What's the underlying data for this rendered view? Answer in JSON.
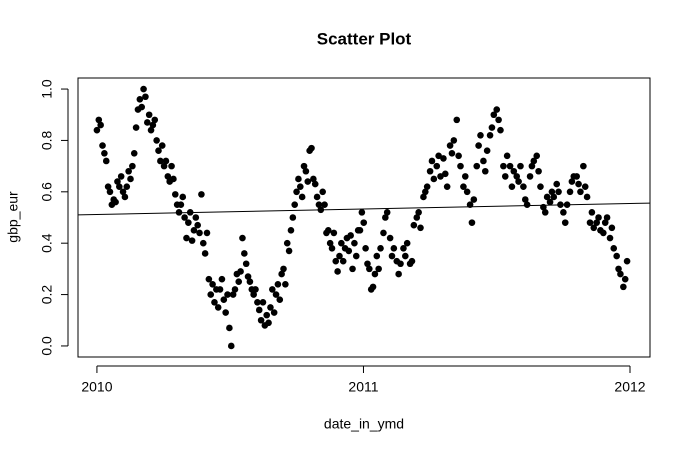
{
  "chart_data": {
    "type": "scatter",
    "title": "Scatter Plot",
    "x_label": "date_in_ymd",
    "y_label": "gbp_eur",
    "xlim": [
      2009.929,
      2012.075
    ],
    "ylim": [
      -0.043,
      1.043
    ],
    "xticks": [
      2010,
      2011,
      2012
    ],
    "yticks": [
      {
        "value": 0,
        "label": "0.0"
      },
      0.2,
      0.4,
      0.6,
      0.8,
      {
        "value": 1,
        "label": "1.0"
      }
    ],
    "color": "#000000",
    "fit_line": {
      "x": [
        2009.929,
        2012.075
      ],
      "y": [
        0.51,
        0.556
      ],
      "color": "#000000"
    },
    "x": [
      2010.0,
      2010.007,
      2010.014,
      2010.021,
      2010.028,
      2010.035,
      2010.042,
      2010.049,
      2010.056,
      2010.063,
      2010.07,
      2010.077,
      2010.084,
      2010.091,
      2010.098,
      2010.105,
      2010.112,
      2010.119,
      2010.126,
      2010.133,
      2010.14,
      2010.147,
      2010.154,
      2010.161,
      2010.168,
      2010.175,
      2010.182,
      2010.189,
      2010.196,
      2010.203,
      2010.21,
      2010.217,
      2010.224,
      2010.231,
      2010.238,
      2010.245,
      2010.252,
      2010.259,
      2010.266,
      2010.273,
      2010.28,
      2010.287,
      2010.294,
      2010.301,
      2010.308,
      2010.315,
      2010.322,
      2010.329,
      2010.336,
      2010.343,
      2010.35,
      2010.357,
      2010.364,
      2010.371,
      2010.378,
      2010.385,
      2010.392,
      2010.399,
      2010.406,
      2010.413,
      2010.42,
      2010.427,
      2010.434,
      2010.441,
      2010.448,
      2010.455,
      2010.462,
      2010.469,
      2010.476,
      2010.483,
      2010.49,
      2010.497,
      2010.504,
      2010.511,
      2010.518,
      2010.525,
      2010.532,
      2010.539,
      2010.546,
      2010.553,
      2010.56,
      2010.567,
      2010.574,
      2010.581,
      2010.588,
      2010.595,
      2010.602,
      2010.609,
      2010.616,
      2010.623,
      2010.63,
      2010.637,
      2010.644,
      2010.651,
      2010.658,
      2010.665,
      2010.672,
      2010.679,
      2010.686,
      2010.693,
      2010.7,
      2010.707,
      2010.714,
      2010.721,
      2010.728,
      2010.735,
      2010.742,
      2010.749,
      2010.756,
      2010.763,
      2010.77,
      2010.777,
      2010.784,
      2010.791,
      2010.798,
      2010.805,
      2010.812,
      2010.819,
      2010.826,
      2010.833,
      2010.84,
      2010.847,
      2010.854,
      2010.861,
      2010.868,
      2010.875,
      2010.882,
      2010.889,
      2010.896,
      2010.903,
      2010.91,
      2010.917,
      2010.924,
      2010.931,
      2010.938,
      2010.945,
      2010.952,
      2010.959,
      2010.966,
      2010.973,
      2010.98,
      2010.987,
      2010.994,
      2011.001,
      2011.008,
      2011.015,
      2011.022,
      2011.029,
      2011.036,
      2011.043,
      2011.05,
      2011.057,
      2011.064,
      2011.075,
      2011.082,
      2011.089,
      2011.1,
      2011.107,
      2011.114,
      2011.125,
      2011.132,
      2011.139,
      2011.15,
      2011.157,
      2011.164,
      2011.175,
      2011.182,
      2011.189,
      2011.2,
      2011.207,
      2011.214,
      2011.225,
      2011.232,
      2011.239,
      2011.25,
      2011.257,
      2011.264,
      2011.275,
      2011.282,
      2011.289,
      2011.3,
      2011.307,
      2011.314,
      2011.325,
      2011.332,
      2011.339,
      2011.35,
      2011.357,
      2011.364,
      2011.375,
      2011.382,
      2011.389,
      2011.4,
      2011.407,
      2011.414,
      2011.425,
      2011.432,
      2011.439,
      2011.45,
      2011.457,
      2011.464,
      2011.475,
      2011.482,
      2011.489,
      2011.5,
      2011.507,
      2011.514,
      2011.525,
      2011.532,
      2011.539,
      2011.55,
      2011.557,
      2011.564,
      2011.575,
      2011.582,
      2011.589,
      2011.6,
      2011.607,
      2011.614,
      2011.625,
      2011.632,
      2011.639,
      2011.65,
      2011.657,
      2011.664,
      2011.675,
      2011.682,
      2011.689,
      2011.7,
      2011.707,
      2011.714,
      2011.725,
      2011.732,
      2011.739,
      2011.75,
      2011.757,
      2011.764,
      2011.775,
      2011.782,
      2011.789,
      2011.8,
      2011.807,
      2011.814,
      2011.825,
      2011.832,
      2011.839,
      2011.85,
      2011.857,
      2011.864,
      2011.875,
      2011.882,
      2011.889,
      2011.9,
      2011.907,
      2011.914,
      2011.925,
      2011.932,
      2011.939,
      2011.95,
      2011.957,
      2011.964,
      2011.975,
      2011.982,
      2011.989
    ],
    "y": [
      0.84,
      0.88,
      0.86,
      0.78,
      0.75,
      0.72,
      0.62,
      0.6,
      0.55,
      0.57,
      0.56,
      0.64,
      0.62,
      0.66,
      0.6,
      0.58,
      0.62,
      0.68,
      0.65,
      0.7,
      0.75,
      0.85,
      0.92,
      0.96,
      0.93,
      1.0,
      0.97,
      0.87,
      0.9,
      0.84,
      0.86,
      0.88,
      0.8,
      0.76,
      0.72,
      0.78,
      0.7,
      0.72,
      0.66,
      0.64,
      0.7,
      0.65,
      0.59,
      0.55,
      0.52,
      0.55,
      0.58,
      0.5,
      0.42,
      0.48,
      0.52,
      0.41,
      0.45,
      0.5,
      0.47,
      0.44,
      0.59,
      0.4,
      0.36,
      0.44,
      0.26,
      0.2,
      0.24,
      0.17,
      0.22,
      0.15,
      0.22,
      0.26,
      0.18,
      0.13,
      0.2,
      0.07,
      0.0,
      0.2,
      0.22,
      0.28,
      0.25,
      0.29,
      0.42,
      0.36,
      0.32,
      0.27,
      0.25,
      0.22,
      0.2,
      0.22,
      0.17,
      0.14,
      0.1,
      0.17,
      0.08,
      0.12,
      0.09,
      0.15,
      0.22,
      0.13,
      0.2,
      0.24,
      0.18,
      0.28,
      0.3,
      0.24,
      0.4,
      0.37,
      0.45,
      0.5,
      0.55,
      0.6,
      0.65,
      0.62,
      0.58,
      0.7,
      0.68,
      0.64,
      0.76,
      0.77,
      0.65,
      0.63,
      0.58,
      0.55,
      0.53,
      0.6,
      0.55,
      0.44,
      0.45,
      0.4,
      0.38,
      0.44,
      0.33,
      0.29,
      0.35,
      0.4,
      0.33,
      0.38,
      0.42,
      0.37,
      0.43,
      0.3,
      0.4,
      0.35,
      0.45,
      0.45,
      0.52,
      0.48,
      0.38,
      0.32,
      0.3,
      0.22,
      0.23,
      0.28,
      0.35,
      0.3,
      0.38,
      0.44,
      0.5,
      0.52,
      0.42,
      0.35,
      0.38,
      0.33,
      0.28,
      0.32,
      0.38,
      0.35,
      0.4,
      0.32,
      0.33,
      0.47,
      0.5,
      0.52,
      0.46,
      0.58,
      0.6,
      0.62,
      0.68,
      0.72,
      0.65,
      0.7,
      0.74,
      0.66,
      0.73,
      0.67,
      0.62,
      0.78,
      0.75,
      0.8,
      0.88,
      0.74,
      0.7,
      0.62,
      0.66,
      0.6,
      0.55,
      0.48,
      0.57,
      0.7,
      0.78,
      0.82,
      0.72,
      0.68,
      0.76,
      0.82,
      0.85,
      0.9,
      0.92,
      0.88,
      0.84,
      0.7,
      0.66,
      0.74,
      0.7,
      0.62,
      0.68,
      0.66,
      0.64,
      0.7,
      0.62,
      0.57,
      0.55,
      0.66,
      0.7,
      0.72,
      0.74,
      0.68,
      0.62,
      0.54,
      0.52,
      0.58,
      0.56,
      0.6,
      0.58,
      0.63,
      0.6,
      0.55,
      0.52,
      0.48,
      0.55,
      0.6,
      0.64,
      0.66,
      0.66,
      0.63,
      0.6,
      0.7,
      0.62,
      0.58,
      0.48,
      0.52,
      0.46,
      0.48,
      0.5,
      0.45,
      0.44,
      0.48,
      0.5,
      0.42,
      0.46,
      0.38,
      0.35,
      0.3,
      0.28,
      0.23,
      0.26,
      0.33
    ]
  }
}
